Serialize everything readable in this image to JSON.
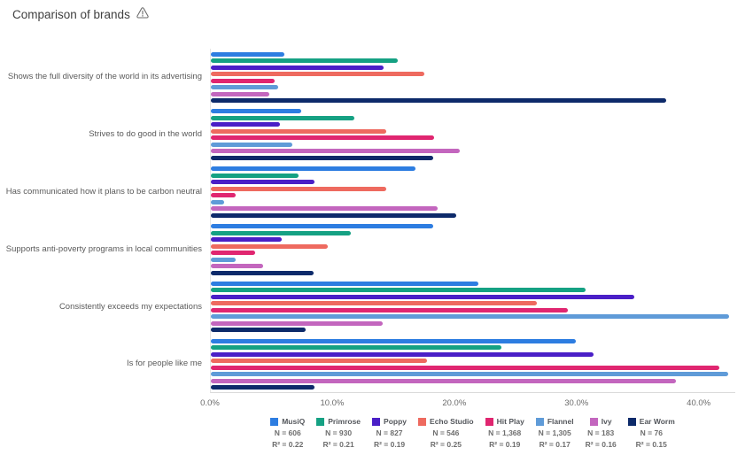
{
  "header": {
    "title": "Comparison of brands"
  },
  "chart_data": {
    "type": "bar",
    "orientation": "horizontal",
    "title": "Comparison of brands",
    "xlabel": "",
    "ylabel": "",
    "grid": false,
    "legend_position": "bottom",
    "x_axis": {
      "tick_labels": [
        "0.0%",
        "10.0%",
        "20.0%",
        "30.0%",
        "40.0%"
      ],
      "tick_values": [
        0,
        10,
        20,
        30,
        40
      ],
      "display_max": 43
    },
    "categories": [
      "Shows the full diversity of the world in its advertising",
      "Strives to do good in the world",
      "Has communicated how it plans to be carbon neutral",
      "Supports anti-poverty programs in local communities",
      "Consistently exceeds my expectations",
      "Is for people like me"
    ],
    "series": [
      {
        "name": "MusiQ",
        "color": "#2d7de1",
        "n_label": "N = 606",
        "r2_label": "R² = 0.22",
        "values": [
          6.0,
          7.4,
          16.8,
          18.2,
          21.9,
          29.9
        ]
      },
      {
        "name": "Primrose",
        "color": "#15a183",
        "n_label": "N = 930",
        "r2_label": "R² = 0.21",
        "values": [
          15.3,
          11.8,
          7.2,
          11.5,
          30.7,
          23.8
        ]
      },
      {
        "name": "Poppy",
        "color": "#4a1fc7",
        "n_label": "N = 827",
        "r2_label": "R² = 0.19",
        "values": [
          14.2,
          5.7,
          8.5,
          5.8,
          34.7,
          31.4
        ]
      },
      {
        "name": "Echo Studio",
        "color": "#ee6a5f",
        "n_label": "N = 546",
        "r2_label": "R² = 0.25",
        "values": [
          17.5,
          14.4,
          14.4,
          9.6,
          26.7,
          17.7
        ]
      },
      {
        "name": "Hit Play",
        "color": "#e02670",
        "n_label": "N = 1,368",
        "r2_label": "R² = 0.19",
        "values": [
          5.2,
          18.3,
          2.0,
          3.6,
          29.3,
          41.7
        ]
      },
      {
        "name": "Flannel",
        "color": "#5f9bd8",
        "n_label": "N = 1,305",
        "r2_label": "R² = 0.17",
        "values": [
          5.5,
          6.7,
          1.1,
          2.0,
          42.5,
          42.4
        ]
      },
      {
        "name": "Ivy",
        "color": "#c366be",
        "n_label": "N = 183",
        "r2_label": "R² = 0.16",
        "values": [
          4.8,
          20.4,
          18.6,
          4.3,
          14.1,
          38.1
        ]
      },
      {
        "name": "Ear Worm",
        "color": "#0d2a6a",
        "n_label": "N = 76",
        "r2_label": "R² = 0.15",
        "values": [
          37.3,
          18.2,
          20.1,
          8.4,
          7.8,
          8.5
        ]
      }
    ]
  }
}
